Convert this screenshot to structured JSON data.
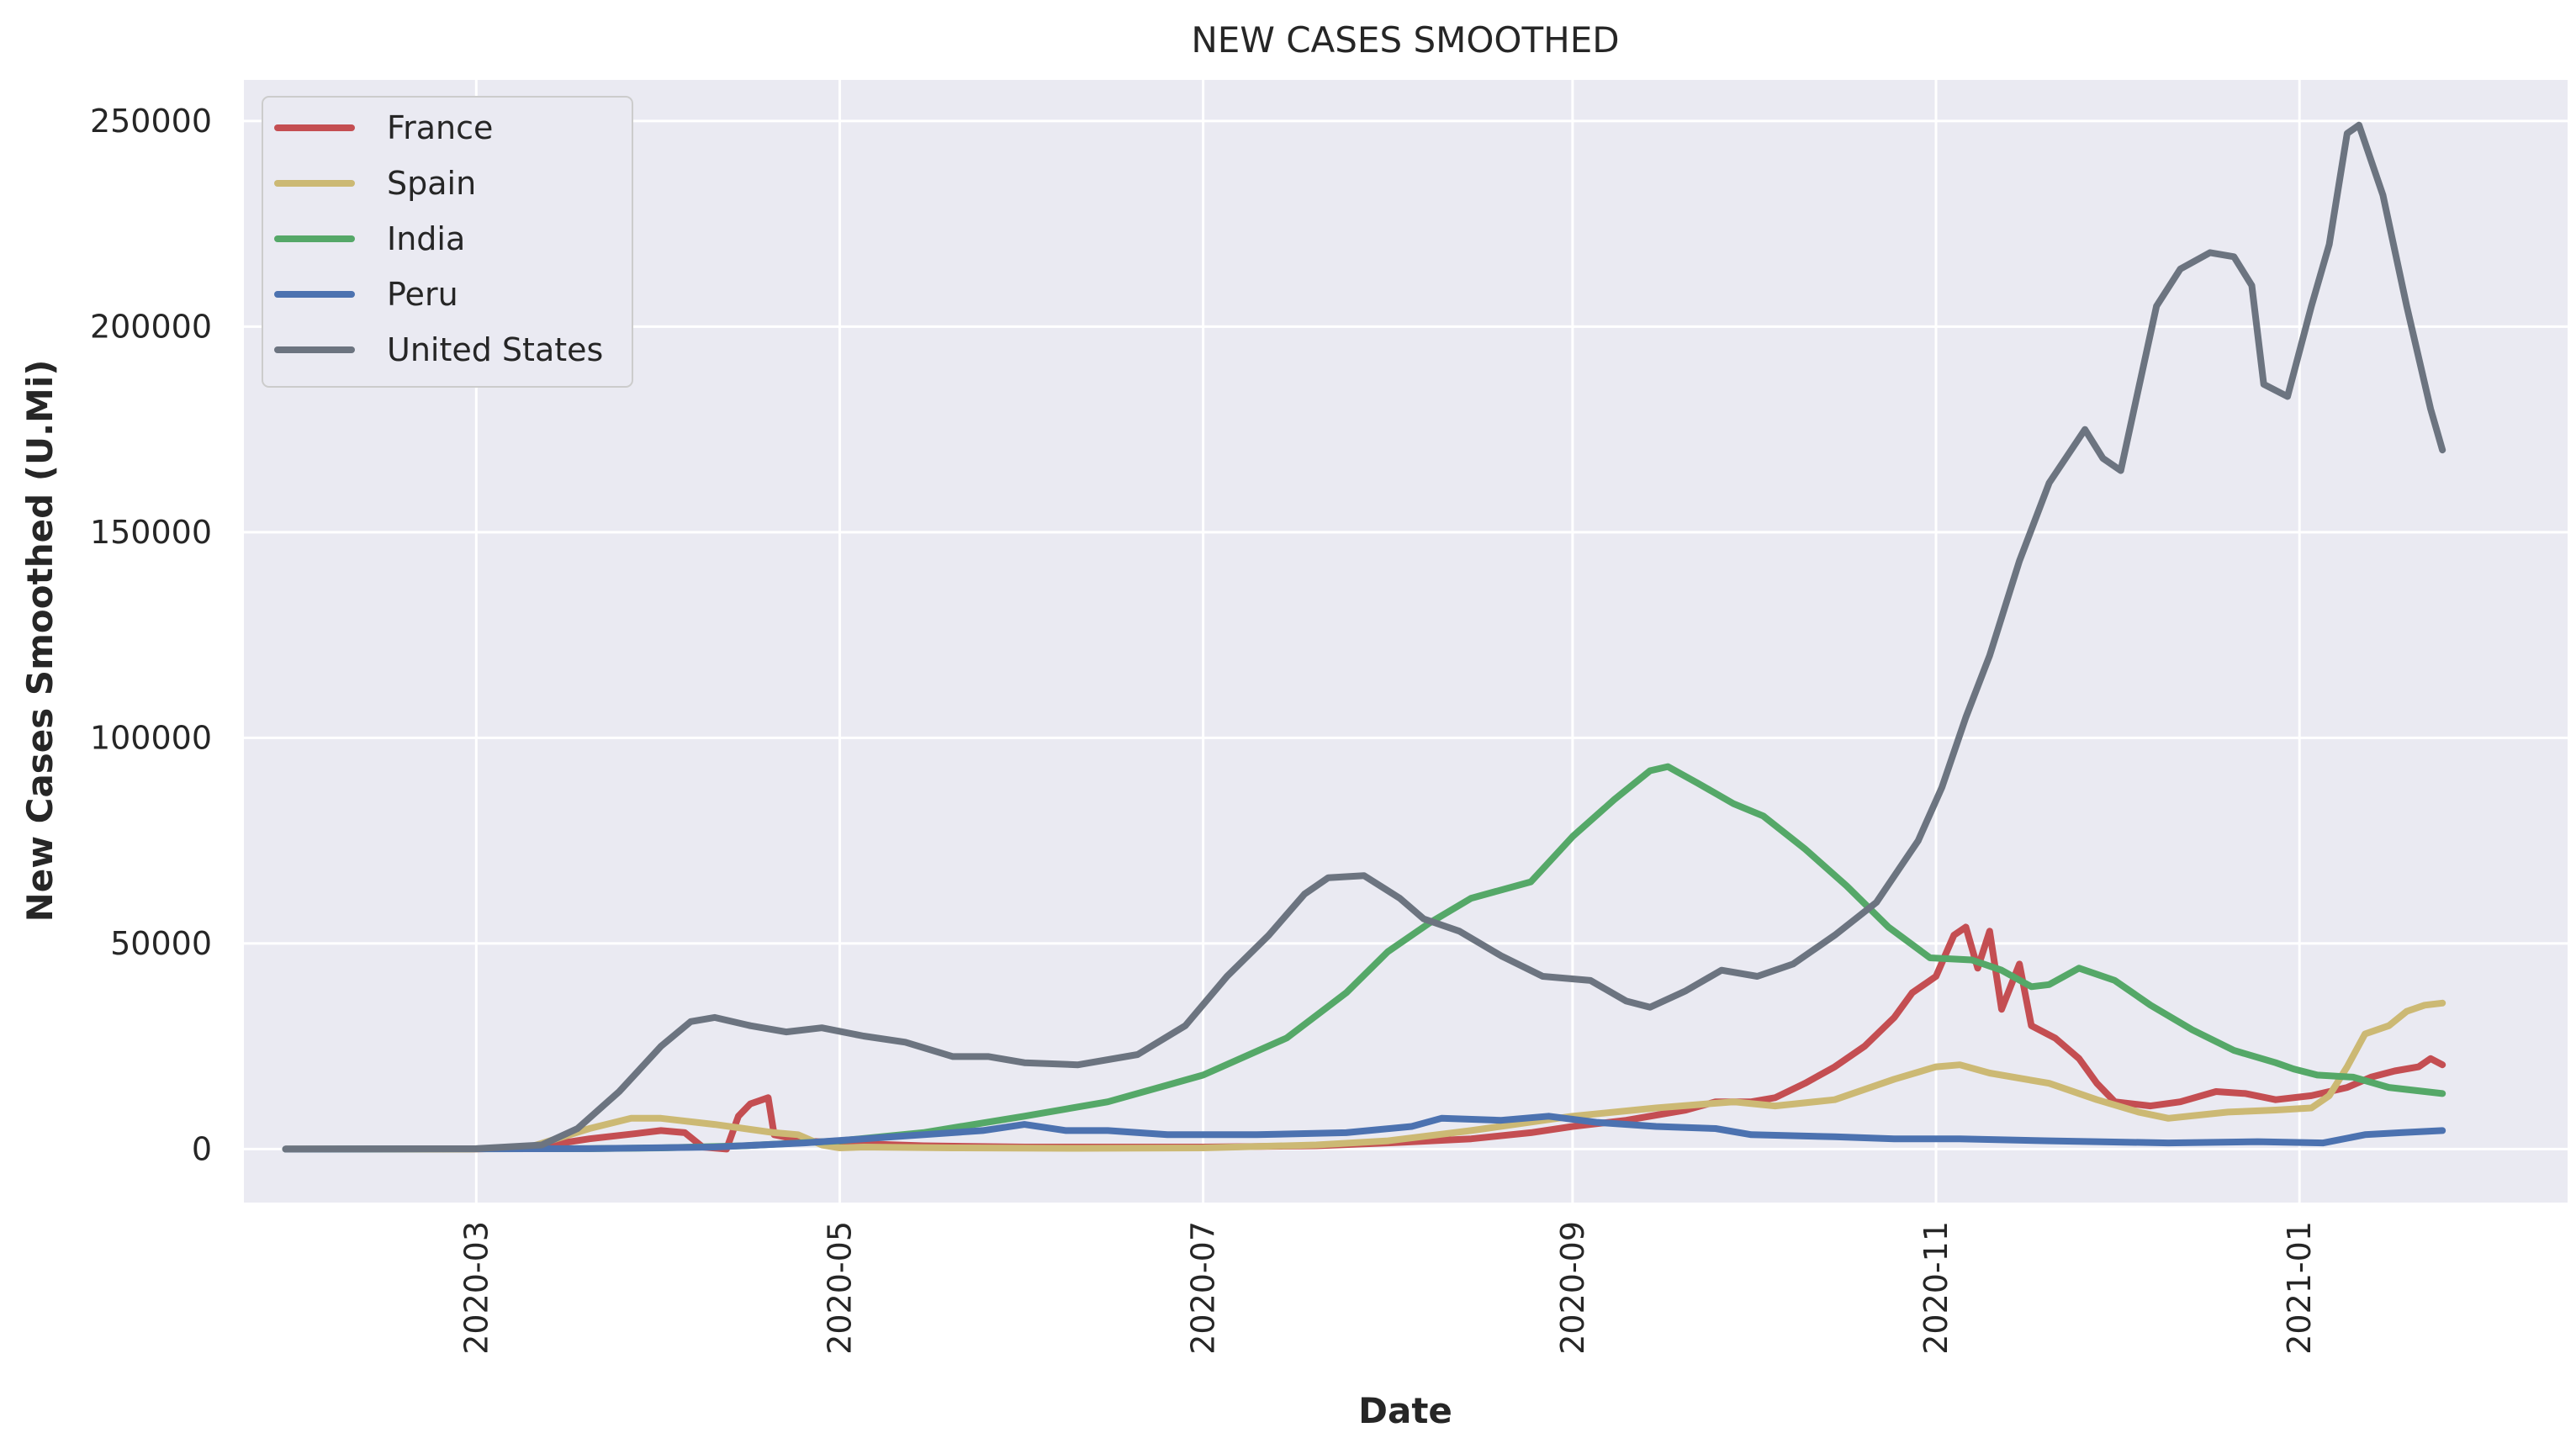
{
  "chart_data": {
    "type": "line",
    "title": "NEW CASES SMOOTHED",
    "xlabel": "Date",
    "ylabel": "New Cases Smoothed (U.Mi)",
    "x_range": [
      "2020-01-22",
      "2021-02-15"
    ],
    "ylim": [
      -13000,
      260000
    ],
    "x_ticks": [
      {
        "date": "2020-03-01",
        "label": "2020-03"
      },
      {
        "date": "2020-05-01",
        "label": "2020-05"
      },
      {
        "date": "2020-07-01",
        "label": "2020-07"
      },
      {
        "date": "2020-09-01",
        "label": "2020-09"
      },
      {
        "date": "2020-11-01",
        "label": "2020-11"
      },
      {
        "date": "2021-01-01",
        "label": "2021-01"
      }
    ],
    "y_ticks": [
      0,
      50000,
      100000,
      150000,
      200000,
      250000
    ],
    "grid": true,
    "legend_position": "top-left",
    "series": [
      {
        "name": "France",
        "color": "#c44e52",
        "points": [
          [
            "2020-01-29",
            0
          ],
          [
            "2020-02-29",
            0
          ],
          [
            "2020-03-10",
            300
          ],
          [
            "2020-03-20",
            2500
          ],
          [
            "2020-03-28",
            3800
          ],
          [
            "2020-04-01",
            4500
          ],
          [
            "2020-04-05",
            4000
          ],
          [
            "2020-04-08",
            500
          ],
          [
            "2020-04-12",
            0
          ],
          [
            "2020-04-14",
            8000
          ],
          [
            "2020-04-16",
            11000
          ],
          [
            "2020-04-19",
            12500
          ],
          [
            "2020-04-20",
            3500
          ],
          [
            "2020-04-25",
            2000
          ],
          [
            "2020-05-01",
            1500
          ],
          [
            "2020-05-15",
            800
          ],
          [
            "2020-06-01",
            500
          ],
          [
            "2020-07-01",
            500
          ],
          [
            "2020-07-20",
            800
          ],
          [
            "2020-08-01",
            1500
          ],
          [
            "2020-08-15",
            2500
          ],
          [
            "2020-08-25",
            4000
          ],
          [
            "2020-09-01",
            5500
          ],
          [
            "2020-09-10",
            7000
          ],
          [
            "2020-09-20",
            9500
          ],
          [
            "2020-09-25",
            11500
          ],
          [
            "2020-10-01",
            11500
          ],
          [
            "2020-10-05",
            12500
          ],
          [
            "2020-10-10",
            16000
          ],
          [
            "2020-10-15",
            20000
          ],
          [
            "2020-10-20",
            25000
          ],
          [
            "2020-10-25",
            32000
          ],
          [
            "2020-10-28",
            38000
          ],
          [
            "2020-11-01",
            42000
          ],
          [
            "2020-11-04",
            52000
          ],
          [
            "2020-11-06",
            54000
          ],
          [
            "2020-11-08",
            44000
          ],
          [
            "2020-11-10",
            53000
          ],
          [
            "2020-11-12",
            34000
          ],
          [
            "2020-11-15",
            45000
          ],
          [
            "2020-11-17",
            30000
          ],
          [
            "2020-11-21",
            27000
          ],
          [
            "2020-11-25",
            22000
          ],
          [
            "2020-11-28",
            16000
          ],
          [
            "2020-12-01",
            11500
          ],
          [
            "2020-12-07",
            10500
          ],
          [
            "2020-12-12",
            11500
          ],
          [
            "2020-12-18",
            14000
          ],
          [
            "2020-12-23",
            13500
          ],
          [
            "2020-12-28",
            12000
          ],
          [
            "2021-01-03",
            13000
          ],
          [
            "2021-01-09",
            15000
          ],
          [
            "2021-01-13",
            17500
          ],
          [
            "2021-01-17",
            19000
          ],
          [
            "2021-01-21",
            20000
          ],
          [
            "2021-01-23",
            22000
          ],
          [
            "2021-01-25",
            20500
          ]
        ]
      },
      {
        "name": "Spain",
        "color": "#ccb974",
        "points": [
          [
            "2020-01-29",
            0
          ],
          [
            "2020-02-29",
            0
          ],
          [
            "2020-03-10",
            500
          ],
          [
            "2020-03-20",
            5000
          ],
          [
            "2020-03-27",
            7500
          ],
          [
            "2020-04-01",
            7500
          ],
          [
            "2020-04-10",
            6000
          ],
          [
            "2020-04-20",
            4000
          ],
          [
            "2020-04-24",
            3500
          ],
          [
            "2020-04-28",
            1000
          ],
          [
            "2020-05-01",
            300
          ],
          [
            "2020-05-05",
            500
          ],
          [
            "2020-05-20",
            300
          ],
          [
            "2020-06-10",
            200
          ],
          [
            "2020-07-01",
            300
          ],
          [
            "2020-07-20",
            1000
          ],
          [
            "2020-08-01",
            2000
          ],
          [
            "2020-08-15",
            4500
          ],
          [
            "2020-09-01",
            8000
          ],
          [
            "2020-09-15",
            10000
          ],
          [
            "2020-09-28",
            11500
          ],
          [
            "2020-10-05",
            10500
          ],
          [
            "2020-10-15",
            12000
          ],
          [
            "2020-10-25",
            17000
          ],
          [
            "2020-11-01",
            20000
          ],
          [
            "2020-11-05",
            20500
          ],
          [
            "2020-11-10",
            18500
          ],
          [
            "2020-11-20",
            16000
          ],
          [
            "2020-11-28",
            12000
          ],
          [
            "2020-12-05",
            9000
          ],
          [
            "2020-12-10",
            7500
          ],
          [
            "2020-12-20",
            9000
          ],
          [
            "2020-12-28",
            9500
          ],
          [
            "2021-01-03",
            10000
          ],
          [
            "2021-01-06",
            13000
          ],
          [
            "2021-01-09",
            20000
          ],
          [
            "2021-01-12",
            28000
          ],
          [
            "2021-01-16",
            30000
          ],
          [
            "2021-01-19",
            33500
          ],
          [
            "2021-01-22",
            35000
          ],
          [
            "2021-01-25",
            35500
          ]
        ]
      },
      {
        "name": "India",
        "color": "#55a868",
        "points": [
          [
            "2020-01-29",
            0
          ],
          [
            "2020-03-20",
            100
          ],
          [
            "2020-04-01",
            300
          ],
          [
            "2020-04-15",
            800
          ],
          [
            "2020-05-01",
            2000
          ],
          [
            "2020-05-15",
            4000
          ],
          [
            "2020-06-01",
            8000
          ],
          [
            "2020-06-15",
            11500
          ],
          [
            "2020-07-01",
            18000
          ],
          [
            "2020-07-15",
            27000
          ],
          [
            "2020-07-25",
            38000
          ],
          [
            "2020-08-01",
            48000
          ],
          [
            "2020-08-08",
            55000
          ],
          [
            "2020-08-15",
            61000
          ],
          [
            "2020-08-25",
            65000
          ],
          [
            "2020-09-01",
            76000
          ],
          [
            "2020-09-08",
            85000
          ],
          [
            "2020-09-14",
            92000
          ],
          [
            "2020-09-17",
            93000
          ],
          [
            "2020-09-22",
            89000
          ],
          [
            "2020-09-28",
            84000
          ],
          [
            "2020-10-03",
            81000
          ],
          [
            "2020-10-10",
            73000
          ],
          [
            "2020-10-17",
            64000
          ],
          [
            "2020-10-24",
            54000
          ],
          [
            "2020-10-31",
            46500
          ],
          [
            "2020-11-07",
            46000
          ],
          [
            "2020-11-12",
            43500
          ],
          [
            "2020-11-17",
            39500
          ],
          [
            "2020-11-20",
            40000
          ],
          [
            "2020-11-25",
            44000
          ],
          [
            "2020-12-01",
            41000
          ],
          [
            "2020-12-07",
            35000
          ],
          [
            "2020-12-14",
            29000
          ],
          [
            "2020-12-21",
            24000
          ],
          [
            "2020-12-28",
            21000
          ],
          [
            "2020-12-31",
            19500
          ],
          [
            "2021-01-04",
            18000
          ],
          [
            "2021-01-10",
            17500
          ],
          [
            "2021-01-16",
            15000
          ],
          [
            "2021-01-25",
            13500
          ]
        ]
      },
      {
        "name": "Peru",
        "color": "#4c72b0",
        "points": [
          [
            "2020-01-29",
            0
          ],
          [
            "2020-03-20",
            100
          ],
          [
            "2020-04-10",
            500
          ],
          [
            "2020-04-25",
            1500
          ],
          [
            "2020-05-10",
            3000
          ],
          [
            "2020-05-25",
            4500
          ],
          [
            "2020-06-01",
            6000
          ],
          [
            "2020-06-08",
            4500
          ],
          [
            "2020-06-15",
            4500
          ],
          [
            "2020-06-25",
            3500
          ],
          [
            "2020-07-10",
            3500
          ],
          [
            "2020-07-25",
            4000
          ],
          [
            "2020-08-05",
            5500
          ],
          [
            "2020-08-10",
            7500
          ],
          [
            "2020-08-20",
            7000
          ],
          [
            "2020-08-28",
            8000
          ],
          [
            "2020-09-05",
            6500
          ],
          [
            "2020-09-15",
            5500
          ],
          [
            "2020-09-25",
            5000
          ],
          [
            "2020-10-01",
            3500
          ],
          [
            "2020-10-15",
            3000
          ],
          [
            "2020-10-25",
            2500
          ],
          [
            "2020-11-05",
            2500
          ],
          [
            "2020-11-20",
            2000
          ],
          [
            "2020-12-10",
            1500
          ],
          [
            "2020-12-25",
            1800
          ],
          [
            "2021-01-05",
            1500
          ],
          [
            "2021-01-12",
            3500
          ],
          [
            "2021-01-18",
            4000
          ],
          [
            "2021-01-25",
            4500
          ]
        ]
      },
      {
        "name": "United States",
        "color": "#6c7480",
        "points": [
          [
            "2020-01-29",
            0
          ],
          [
            "2020-03-01",
            100
          ],
          [
            "2020-03-12",
            1000
          ],
          [
            "2020-03-18",
            5000
          ],
          [
            "2020-03-25",
            14000
          ],
          [
            "2020-04-01",
            25000
          ],
          [
            "2020-04-06",
            31000
          ],
          [
            "2020-04-10",
            32000
          ],
          [
            "2020-04-16",
            30000
          ],
          [
            "2020-04-22",
            28500
          ],
          [
            "2020-04-28",
            29500
          ],
          [
            "2020-05-05",
            27500
          ],
          [
            "2020-05-12",
            26000
          ],
          [
            "2020-05-20",
            22500
          ],
          [
            "2020-05-26",
            22500
          ],
          [
            "2020-06-01",
            21000
          ],
          [
            "2020-06-10",
            20500
          ],
          [
            "2020-06-20",
            23000
          ],
          [
            "2020-06-28",
            30000
          ],
          [
            "2020-07-05",
            42000
          ],
          [
            "2020-07-12",
            52000
          ],
          [
            "2020-07-18",
            62000
          ],
          [
            "2020-07-22",
            66000
          ],
          [
            "2020-07-28",
            66500
          ],
          [
            "2020-08-03",
            61000
          ],
          [
            "2020-08-07",
            56000
          ],
          [
            "2020-08-13",
            53000
          ],
          [
            "2020-08-20",
            47000
          ],
          [
            "2020-08-27",
            42000
          ],
          [
            "2020-09-04",
            41000
          ],
          [
            "2020-09-10",
            36000
          ],
          [
            "2020-09-14",
            34500
          ],
          [
            "2020-09-20",
            38500
          ],
          [
            "2020-09-26",
            43500
          ],
          [
            "2020-10-02",
            42000
          ],
          [
            "2020-10-08",
            45000
          ],
          [
            "2020-10-15",
            52000
          ],
          [
            "2020-10-22",
            60000
          ],
          [
            "2020-10-29",
            75000
          ],
          [
            "2020-11-02",
            88000
          ],
          [
            "2020-11-06",
            105000
          ],
          [
            "2020-11-10",
            120000
          ],
          [
            "2020-11-15",
            143000
          ],
          [
            "2020-11-20",
            162000
          ],
          [
            "2020-11-26",
            175000
          ],
          [
            "2020-11-29",
            168000
          ],
          [
            "2020-12-02",
            165000
          ],
          [
            "2020-12-05",
            185000
          ],
          [
            "2020-12-08",
            205000
          ],
          [
            "2020-12-12",
            214000
          ],
          [
            "2020-12-17",
            218000
          ],
          [
            "2020-12-21",
            217000
          ],
          [
            "2020-12-24",
            210000
          ],
          [
            "2020-12-26",
            186000
          ],
          [
            "2020-12-30",
            183000
          ],
          [
            "2021-01-03",
            205000
          ],
          [
            "2021-01-06",
            220000
          ],
          [
            "2021-01-09",
            247000
          ],
          [
            "2021-01-11",
            249000
          ],
          [
            "2021-01-15",
            232000
          ],
          [
            "2021-01-19",
            205000
          ],
          [
            "2021-01-23",
            180000
          ],
          [
            "2021-01-25",
            170000
          ]
        ]
      }
    ]
  }
}
